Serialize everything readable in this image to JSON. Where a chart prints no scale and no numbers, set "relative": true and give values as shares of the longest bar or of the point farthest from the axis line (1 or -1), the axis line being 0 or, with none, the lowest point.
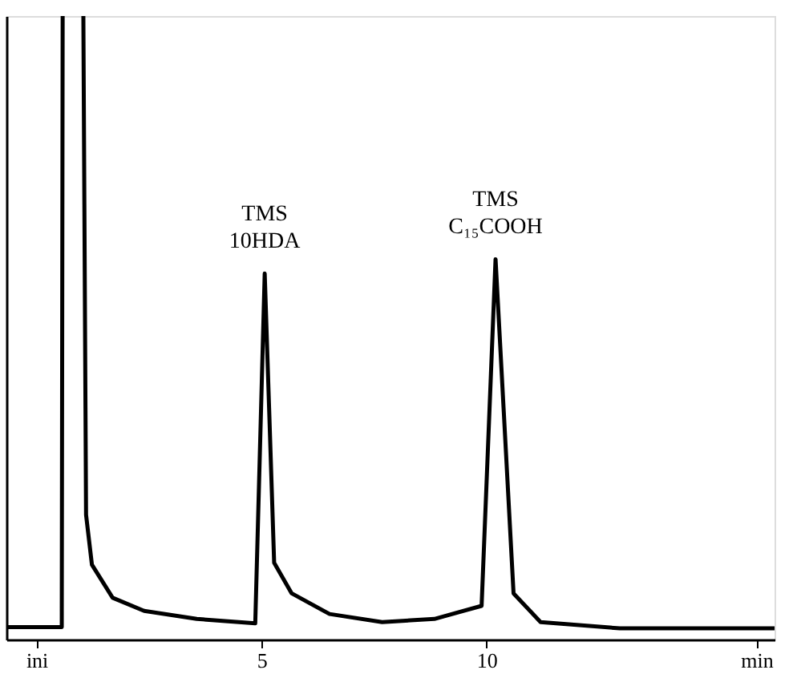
{
  "chart_data": {
    "type": "line",
    "relative": true,
    "x": [
      -0.67,
      0.56,
      0.58,
      0.8,
      1.04,
      1.1,
      1.23,
      1.69,
      2.39,
      3.56,
      4.86,
      5.07,
      5.28,
      5.67,
      6.51,
      7.68,
      8.84,
      9.89,
      10.2,
      10.6,
      11.2,
      12.96,
      16.4
    ],
    "series": [
      {
        "color": "#000000",
        "values": [
          0.02,
          0.02,
          1,
          null,
          1,
          0.2,
          0.12,
          0.067,
          0.046,
          0.033,
          0.026,
          0.587,
          0.123,
          0.074,
          0.041,
          0.028,
          0.033,
          0.054,
          0.61,
          0.074,
          0.028,
          0.018,
          0.018
        ]
      }
    ],
    "xlim": [
      -0.67,
      16.4
    ],
    "xticks": [
      {
        "value": 0,
        "label": "ini"
      },
      5,
      10,
      {
        "value": 16,
        "label": "min"
      }
    ],
    "annotations": [
      {
        "text": "TMS\n10HDA",
        "x": 5.07,
        "y": 0.587
      },
      {
        "text": "TMS\nC₁₅COOH",
        "x": 10.2,
        "y": 0.61
      }
    ],
    "tick_labels": "x",
    "grid": false,
    "marker": "none",
    "line_style": "solid"
  }
}
